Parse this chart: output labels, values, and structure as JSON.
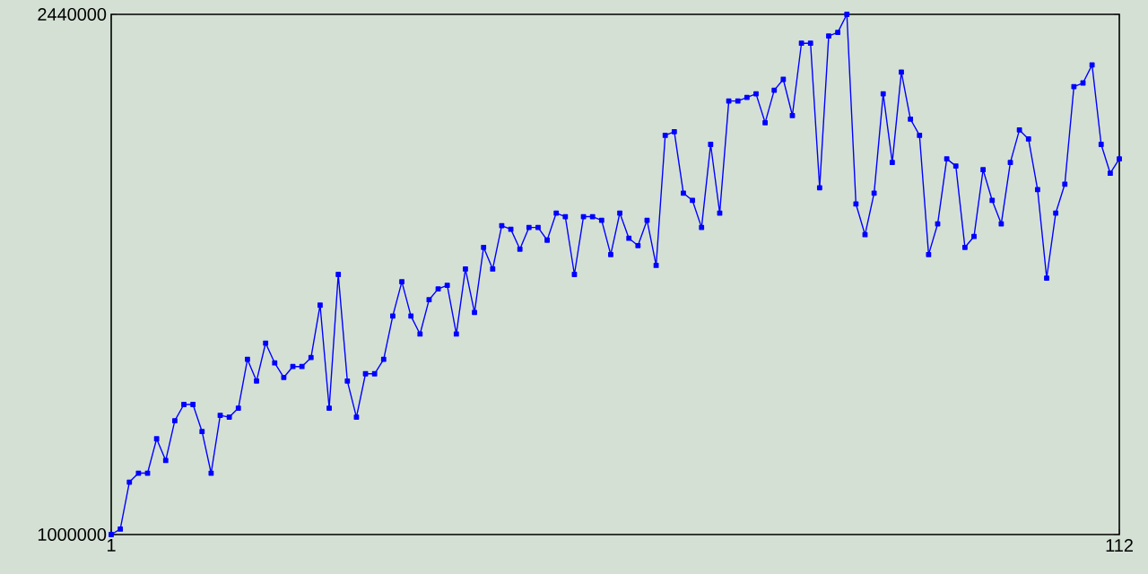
{
  "chart_data": {
    "type": "line",
    "color": "#0000ff",
    "marker": "square",
    "xlim": [
      1,
      112
    ],
    "ylim": [
      1000000,
      2440000
    ],
    "xticks": [
      1,
      112
    ],
    "yticks": [
      1000000,
      2440000
    ],
    "x": [
      1,
      2,
      3,
      4,
      5,
      6,
      7,
      8,
      9,
      10,
      11,
      12,
      13,
      14,
      15,
      16,
      17,
      18,
      19,
      20,
      21,
      22,
      23,
      24,
      25,
      26,
      27,
      28,
      29,
      30,
      31,
      32,
      33,
      34,
      35,
      36,
      37,
      38,
      39,
      40,
      41,
      42,
      43,
      44,
      45,
      46,
      47,
      48,
      49,
      50,
      51,
      52,
      53,
      54,
      55,
      56,
      57,
      58,
      59,
      60,
      61,
      62,
      63,
      64,
      65,
      66,
      67,
      68,
      69,
      70,
      71,
      72,
      73,
      74,
      75,
      76,
      77,
      78,
      79,
      80,
      81,
      82,
      83,
      84,
      85,
      86,
      87,
      88,
      89,
      90,
      91,
      92,
      93,
      94,
      95,
      96,
      97,
      98,
      99,
      100,
      101,
      102,
      103,
      104,
      105,
      106,
      107,
      108,
      109,
      110,
      111,
      112
    ],
    "values": [
      1000000,
      1015000,
      1145000,
      1170000,
      1170000,
      1265000,
      1205000,
      1315000,
      1360000,
      1360000,
      1285000,
      1170000,
      1330000,
      1325000,
      1350000,
      1485000,
      1425000,
      1530000,
      1475000,
      1435000,
      1465000,
      1465000,
      1490000,
      1635000,
      1350000,
      1720000,
      1425000,
      1325000,
      1445000,
      1445000,
      1485000,
      1605000,
      1700000,
      1605000,
      1555000,
      1650000,
      1680000,
      1690000,
      1555000,
      1735000,
      1615000,
      1795000,
      1735000,
      1855000,
      1845000,
      1790000,
      1850000,
      1850000,
      1815000,
      1890000,
      1880000,
      1720000,
      1880000,
      1880000,
      1870000,
      1775000,
      1890000,
      1820000,
      1800000,
      1870000,
      1745000,
      2105000,
      2115000,
      1945000,
      1925000,
      1850000,
      2080000,
      1890000,
      2200000,
      2200000,
      2210000,
      2220000,
      2140000,
      2230000,
      2260000,
      2160000,
      2360000,
      2360000,
      1960000,
      2380000,
      2390000,
      2440000,
      1915000,
      1830000,
      1945000,
      2220000,
      2030000,
      2280000,
      2150000,
      2105000,
      1775000,
      1860000,
      2040000,
      2020000,
      1795000,
      1825000,
      2010000,
      1925000,
      1860000,
      2030000,
      2120000,
      2095000,
      1955000,
      1710000,
      1890000,
      1970000,
      2240000,
      2250000,
      2300000,
      2080000,
      2000000,
      2040000
    ]
  }
}
